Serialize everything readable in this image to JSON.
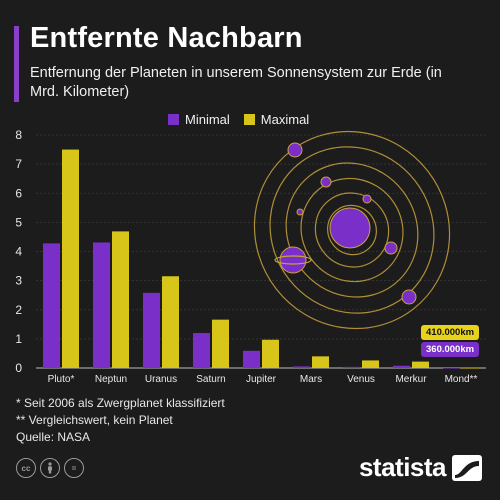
{
  "header": {
    "title": "Entfernte Nachbarn",
    "subtitle": "Entfernung der Planeten in unserem Sonnensystem zur Erde (in Mrd. Kilometer)"
  },
  "colors": {
    "minimal": "#7a2fc9",
    "maximal": "#d8c51a",
    "accent": "#8a3fc9",
    "background": "#1c1c1c",
    "orbit": "#c9a23c"
  },
  "chart_data": {
    "type": "bar",
    "categories": [
      "Pluto*",
      "Neptun",
      "Uranus",
      "Saturn",
      "Jupiter",
      "Mars",
      "Venus",
      "Merkur",
      "Mond**"
    ],
    "series": [
      {
        "name": "Minimal",
        "values": [
          4.28,
          4.31,
          2.58,
          1.2,
          0.59,
          0.055,
          0.038,
          0.077,
          0.00036
        ]
      },
      {
        "name": "Maximal",
        "values": [
          7.5,
          4.69,
          3.15,
          1.66,
          0.97,
          0.4,
          0.26,
          0.22,
          0.00041
        ]
      }
    ],
    "ylim": [
      0,
      8
    ],
    "yticks": [
      0,
      1,
      2,
      3,
      4,
      5,
      6,
      7,
      8
    ],
    "grid": true,
    "legend_position": "top",
    "annotations": {
      "moon_max": "410.000km",
      "moon_min": "360.000km"
    }
  },
  "footnotes": {
    "note1": "*  Seit 2006 als Zwergplanet klassifiziert",
    "note2": "** Vergleichswert, kein Planet",
    "source": "Quelle: NASA"
  },
  "footer": {
    "brand": "statista",
    "license_icons": [
      "cc-icon",
      "by-icon",
      "nd-icon"
    ]
  }
}
